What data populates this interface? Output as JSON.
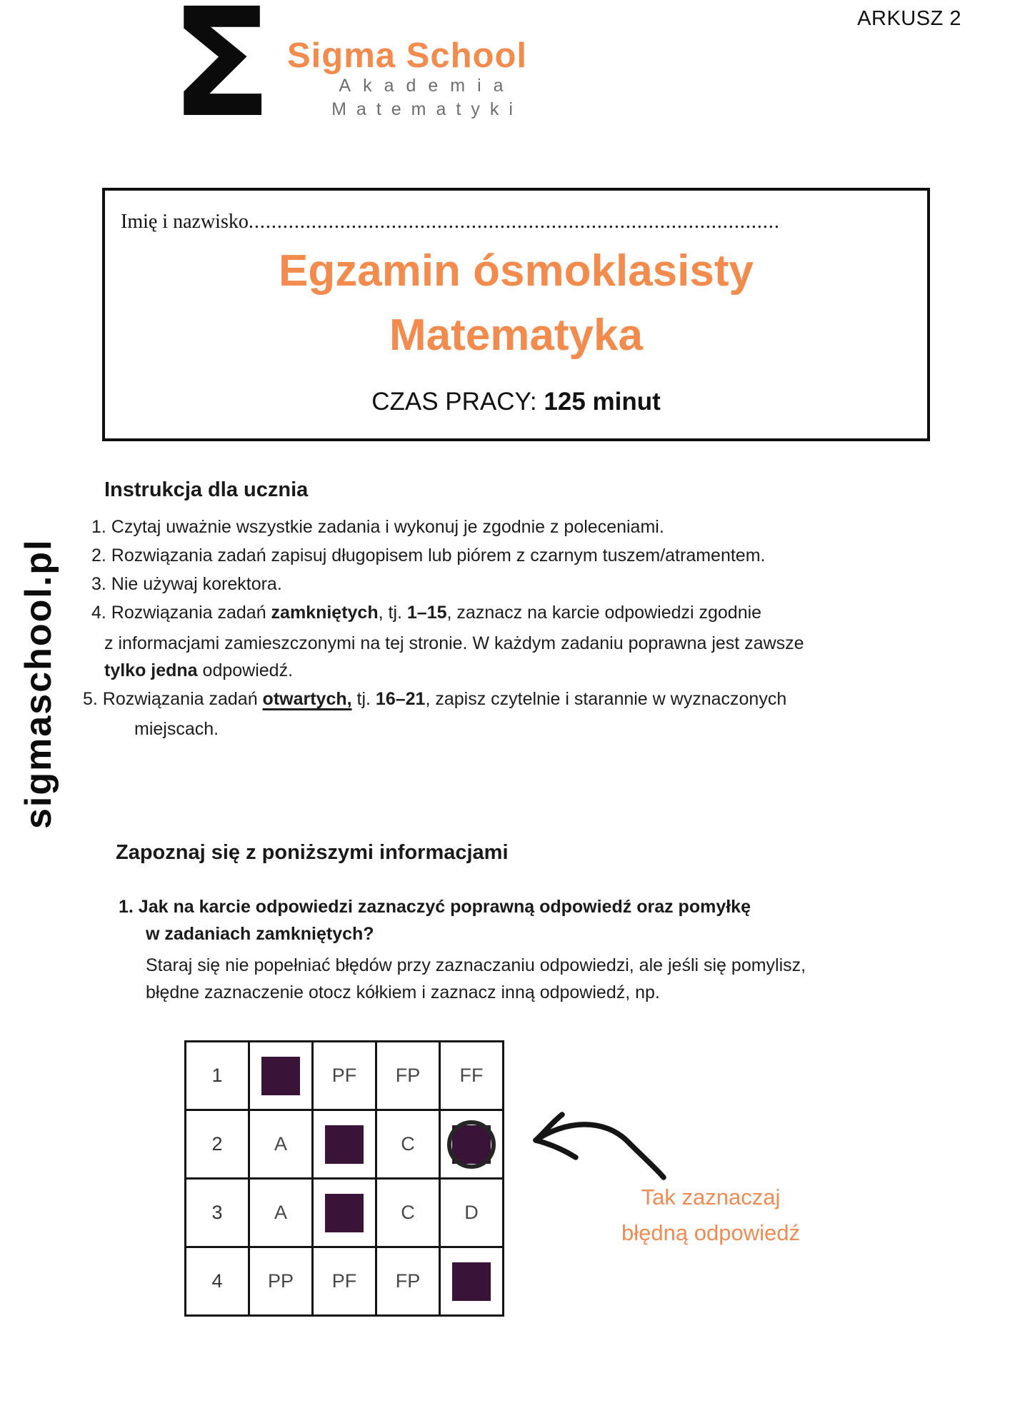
{
  "page": {
    "sheet_label": "ARKUSZ 2",
    "watermark": "sigmaschool.pl"
  },
  "logo": {
    "sigma_glyph": "Σ",
    "brand": "Sigma School",
    "subtitle_line1": "Akademia",
    "subtitle_line2": "Matematyki"
  },
  "header_box": {
    "name_label": "Imię i nazwisko",
    "dots": "..................................................................................................................................................",
    "title_line1": "Egzamin ósmoklasisty",
    "title_line2": "Matematyka",
    "time_label": "CZAS PRACY:",
    "time_value": "125 minut"
  },
  "instructions": {
    "heading": "Instrukcja dla ucznia",
    "lines": [
      [
        {
          "t": "1. Czytaj uważnie wszystkie zadania i wykonuj je zgodnie z poleceniami."
        }
      ],
      [
        {
          "t": "2. Rozwiązania zadań zapisuj długopisem lub piórem z czarnym tuszem/atramentem."
        }
      ],
      [
        {
          "t": "3. Nie używaj korektora."
        }
      ],
      [
        {
          "t": "4. Rozwiązania zadań "
        },
        {
          "t": "zamkniętych",
          "b": true
        },
        {
          "t": ", tj. "
        },
        {
          "t": "1–15",
          "b": true
        },
        {
          "t": ", zaznacz na karcie odpowiedzi zgodnie"
        }
      ],
      [
        {
          "t": "z informacjami zamieszczonymi na tej stronie. W każdym zadaniu poprawna jest zawsze"
        }
      ],
      [
        {
          "t": "tylko jedna",
          "b": true
        },
        {
          "t": " odpowiedź."
        }
      ],
      [
        {
          "t": "5. Rozwiązania zadań "
        },
        {
          "t": "otwartych,",
          "b": true,
          "u": true
        },
        {
          "t": " tj. "
        },
        {
          "t": "16–21",
          "b": true
        },
        {
          "t": ", zapisz czytelnie i starannie w wyznaczonych"
        }
      ],
      [
        {
          "t": "miejscach."
        }
      ]
    ]
  },
  "info_section": {
    "heading": "Zapoznaj się z poniższymi informacjami",
    "question_line1": "1. Jak na karcie odpowiedzi zaznaczyć poprawną odpowiedź oraz pomyłkę",
    "question_line2": "w zadaniach zamkniętych?",
    "body_line1": "Staraj się nie popełniać błędów przy zaznaczaniu odpowiedzi, ale jeśli się pomylisz,",
    "body_line2": "błędne zaznaczenie otocz kółkiem i zaznacz inną odpowiedź, np."
  },
  "answer_grid": {
    "rows": [
      {
        "num": "1",
        "cells": [
          {
            "type": "filled"
          },
          {
            "type": "text",
            "label": "PF"
          },
          {
            "type": "text",
            "label": "FP"
          },
          {
            "type": "text",
            "label": "FF"
          }
        ]
      },
      {
        "num": "2",
        "cells": [
          {
            "type": "text",
            "label": "A"
          },
          {
            "type": "filled"
          },
          {
            "type": "text",
            "label": "C"
          },
          {
            "type": "filled",
            "circled": true
          }
        ]
      },
      {
        "num": "3",
        "cells": [
          {
            "type": "text",
            "label": "A"
          },
          {
            "type": "filled"
          },
          {
            "type": "text",
            "label": "C"
          },
          {
            "type": "text",
            "label": "D"
          }
        ]
      },
      {
        "num": "4",
        "cells": [
          {
            "type": "text",
            "label": "PP"
          },
          {
            "type": "text",
            "label": "PF"
          },
          {
            "type": "text",
            "label": "FP"
          },
          {
            "type": "filled"
          }
        ]
      }
    ]
  },
  "annotation": {
    "line1": "Tak zaznaczaj",
    "line2": "błędną odpowiedź"
  },
  "colors": {
    "accent_orange": "#F28B4E",
    "annotation_orange": "#EE8C55",
    "mark_fill": "#3A1438",
    "subtitle_gray": "#6E6E6E"
  }
}
